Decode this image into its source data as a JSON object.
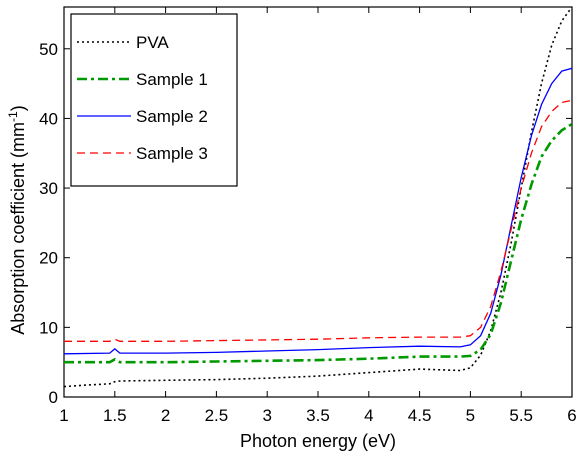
{
  "chart_data": {
    "type": "line",
    "xlabel": "Photon energy (eV)",
    "ylabel": "Absorption coefficient (mm",
    "ylabel_sup": "-1",
    "ylabel_end": ")",
    "xlim": [
      1,
      6
    ],
    "ylim": [
      0,
      56
    ],
    "xticks": [
      1,
      1.5,
      2,
      2.5,
      3,
      3.5,
      4,
      4.5,
      5,
      5.5,
      6
    ],
    "xtick_labels": [
      "1",
      "1.5",
      "2",
      "2.5",
      "3",
      "3.5",
      "4",
      "4.5",
      "5",
      "5.5",
      "6"
    ],
    "yticks": [
      0,
      10,
      20,
      30,
      40,
      50
    ],
    "ytick_labels": [
      "0",
      "10",
      "20",
      "30",
      "40",
      "50"
    ],
    "grid": false,
    "legend_position": "top-left",
    "series": [
      {
        "name": "PVA",
        "color": "#000000",
        "style": "dotted",
        "x": [
          1.0,
          1.2,
          1.45,
          1.5,
          1.55,
          2.0,
          2.5,
          3.0,
          3.5,
          4.0,
          4.5,
          4.9,
          5.0,
          5.1,
          5.2,
          5.3,
          5.4,
          5.5,
          5.6,
          5.7,
          5.8,
          5.9,
          6.0
        ],
        "y": [
          1.5,
          1.7,
          1.9,
          2.2,
          2.3,
          2.4,
          2.5,
          2.7,
          3.0,
          3.5,
          4.0,
          3.8,
          4.2,
          6.0,
          9.5,
          15.0,
          22.0,
          30.0,
          38.0,
          45.0,
          50.5,
          54.0,
          56.0
        ]
      },
      {
        "name": "Sample 1",
        "color": "#009900",
        "style": "dashdot",
        "x": [
          1.0,
          1.45,
          1.5,
          1.55,
          2.0,
          2.5,
          3.0,
          3.5,
          4.0,
          4.5,
          4.9,
          5.0,
          5.1,
          5.2,
          5.3,
          5.4,
          5.5,
          5.6,
          5.7,
          5.8,
          5.9,
          6.0
        ],
        "y": [
          5.0,
          5.0,
          5.4,
          5.0,
          5.0,
          5.1,
          5.2,
          5.3,
          5.5,
          5.8,
          5.8,
          5.9,
          6.8,
          9.0,
          13.5,
          19.5,
          25.5,
          30.5,
          34.5,
          36.8,
          38.3,
          39.2
        ]
      },
      {
        "name": "Sample 2",
        "color": "#0000ff",
        "style": "solid",
        "x": [
          1.0,
          1.45,
          1.5,
          1.55,
          2.0,
          2.5,
          3.0,
          3.5,
          4.0,
          4.5,
          4.9,
          5.0,
          5.1,
          5.2,
          5.3,
          5.4,
          5.5,
          5.6,
          5.7,
          5.8,
          5.9,
          6.0
        ],
        "y": [
          6.2,
          6.3,
          6.9,
          6.3,
          6.3,
          6.4,
          6.6,
          6.8,
          7.1,
          7.3,
          7.2,
          7.5,
          8.8,
          12.0,
          17.5,
          24.5,
          31.5,
          37.5,
          42.0,
          45.0,
          46.8,
          47.2
        ]
      },
      {
        "name": "Sample 3",
        "color": "#ff0000",
        "style": "dashed",
        "x": [
          1.0,
          1.45,
          1.5,
          1.55,
          2.0,
          2.5,
          3.0,
          3.5,
          4.0,
          4.5,
          4.9,
          5.0,
          5.1,
          5.2,
          5.3,
          5.4,
          5.5,
          5.6,
          5.7,
          5.8,
          5.9,
          6.0
        ],
        "y": [
          8.0,
          8.0,
          8.3,
          8.0,
          8.0,
          8.1,
          8.2,
          8.3,
          8.5,
          8.6,
          8.6,
          8.8,
          10.0,
          13.0,
          18.0,
          24.0,
          30.0,
          35.0,
          38.8,
          41.0,
          42.3,
          42.6
        ]
      }
    ]
  }
}
